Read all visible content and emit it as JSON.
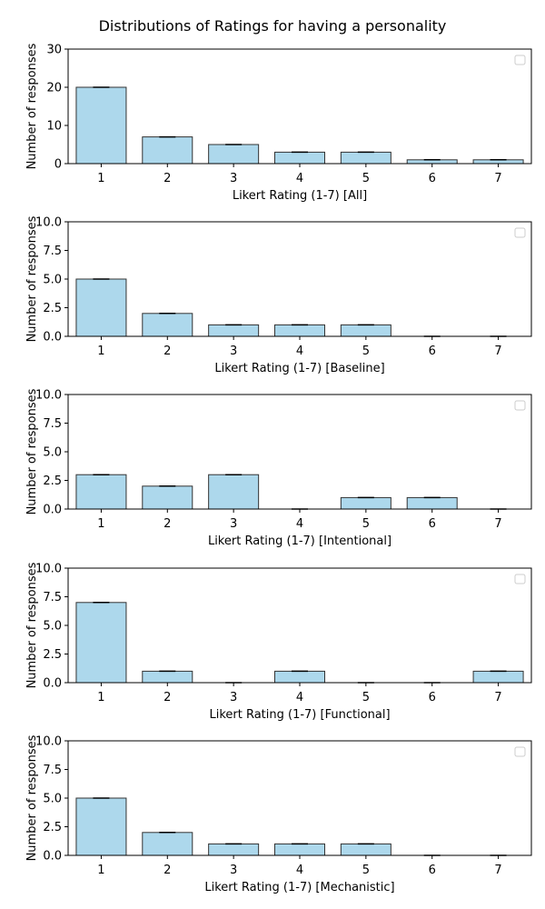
{
  "title": "Distributions of Ratings for having a personality",
  "colors": {
    "bar_fill": "#add8ec",
    "bar_edge": "#333333",
    "axis": "#000000"
  },
  "chart_data": [
    {
      "type": "bar",
      "categories": [
        "1",
        "2",
        "3",
        "4",
        "5",
        "6",
        "7"
      ],
      "values": [
        20,
        7,
        5,
        3,
        3,
        1,
        1
      ],
      "xlabel": "Likert Rating (1-7) [All]",
      "ylabel": "Number of responses",
      "ylim": [
        0,
        30
      ],
      "yticks": [
        "0",
        "10",
        "20",
        "30"
      ],
      "grid": false,
      "legend": "top-right (empty)"
    },
    {
      "type": "bar",
      "categories": [
        "1",
        "2",
        "3",
        "4",
        "5",
        "6",
        "7"
      ],
      "values": [
        5,
        2,
        1,
        1,
        1,
        0,
        0
      ],
      "xlabel": "Likert Rating (1-7) [Baseline]",
      "ylabel": "Number of responses",
      "ylim": [
        0,
        10
      ],
      "yticks": [
        "0.0",
        "2.5",
        "5.0",
        "7.5",
        "10.0"
      ],
      "grid": false,
      "legend": "top-right (empty)"
    },
    {
      "type": "bar",
      "categories": [
        "1",
        "2",
        "3",
        "4",
        "5",
        "6",
        "7"
      ],
      "values": [
        3,
        2,
        3,
        0,
        1,
        1,
        0
      ],
      "xlabel": "Likert Rating (1-7) [Intentional]",
      "ylabel": "Number of responses",
      "ylim": [
        0,
        10
      ],
      "yticks": [
        "0.0",
        "2.5",
        "5.0",
        "7.5",
        "10.0"
      ],
      "grid": false,
      "legend": "top-right (empty)"
    },
    {
      "type": "bar",
      "categories": [
        "1",
        "2",
        "3",
        "4",
        "5",
        "6",
        "7"
      ],
      "values": [
        7,
        1,
        0,
        1,
        0,
        0,
        1
      ],
      "xlabel": "Likert Rating (1-7) [Functional]",
      "ylabel": "Number of responses",
      "ylim": [
        0,
        10
      ],
      "yticks": [
        "0.0",
        "2.5",
        "5.0",
        "7.5",
        "10.0"
      ],
      "grid": false,
      "legend": "top-right (empty)"
    },
    {
      "type": "bar",
      "categories": [
        "1",
        "2",
        "3",
        "4",
        "5",
        "6",
        "7"
      ],
      "values": [
        5,
        2,
        1,
        1,
        1,
        0,
        0
      ],
      "xlabel": "Likert Rating (1-7) [Mechanistic]",
      "ylabel": "Number of responses",
      "ylim": [
        0,
        10
      ],
      "yticks": [
        "0.0",
        "2.5",
        "5.0",
        "7.5",
        "10.0"
      ],
      "grid": false,
      "legend": "top-right (empty)"
    }
  ]
}
